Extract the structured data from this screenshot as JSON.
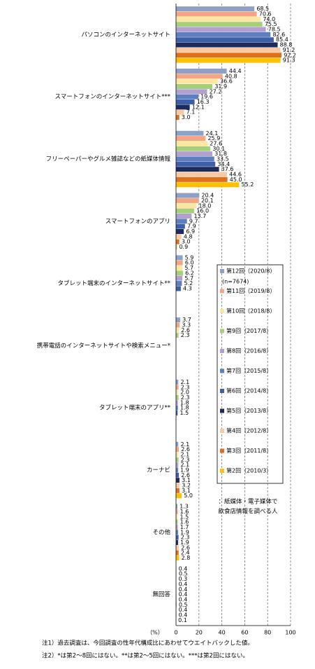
{
  "chart_data": {
    "type": "bar",
    "orientation": "horizontal",
    "categories": [
      "パソコンのインターネットサイト",
      "スマートフォンのインターネットサイト***",
      "フリーペーパーやグルメ雑誌などの紙媒体情報",
      "スマートフォンのアプリ",
      "タブレット端末のインターネットサイト**",
      "携帯電話のインターネットサイトや検索メニュー*",
      "タブレット端末のアプリ**",
      "カーナビ",
      "その他",
      "無回答"
    ],
    "series": [
      {
        "name": "第12回（2020/8）",
        "color": "#8fa0c8",
        "values": [
          68.5,
          44.4,
          24.1,
          20.4,
          5.9,
          3.7,
          2.1,
          2.1,
          1.3,
          0.4
        ],
        "value_labels": [
          "68.5",
          "44.4",
          "24.1",
          "20.4",
          "5.9",
          "3.7",
          "2.1",
          "2.1",
          "1.3",
          "0.4"
        ]
      },
      {
        "name": "第11回（2019/8）",
        "color": "#f4a582",
        "values": [
          70.6,
          40.8,
          25.9,
          20.1,
          6,
          3.3,
          2.3,
          2.6,
          1.6,
          0.5
        ],
        "value_labels": [
          "70.6",
          "40.8",
          "25.9",
          "20.1",
          "6.0",
          "3.3",
          "2.3",
          "2.6",
          "1.6",
          "0.5"
        ]
      },
      {
        "name": "第10回（2018/8）",
        "color": "#fde7a0",
        "values": [
          74,
          36.6,
          27.6,
          18,
          5.7,
          2.6,
          2,
          2.1,
          1.5,
          0.3
        ],
        "value_labels": [
          "74.0",
          "36.6",
          "27.6",
          "18.0",
          "5.7",
          "2.6",
          "2.0",
          "2.1",
          "1.5",
          "0.3"
        ]
      },
      {
        "name": "第9回（2017/8）",
        "color": "#a5cf7a",
        "values": [
          75.5,
          31.9,
          30.1,
          16,
          6.2,
          2.3,
          2.3,
          2.3,
          1.6,
          0.4
        ],
        "value_labels": [
          "75.5",
          "31.9",
          "30.1",
          "16.0",
          "6.2",
          "2.3",
          "2.3",
          "2.3",
          "1.6",
          "0.4"
        ]
      },
      {
        "name": "第8回（2016/8）",
        "color": "#b39fd0",
        "values": [
          78.5,
          27.2,
          31.8,
          13.7,
          5.7,
          null,
          1.8,
          2.1,
          1.7,
          0.4
        ],
        "value_labels": [
          "78.5",
          "27.2",
          "31.8",
          "13.7",
          "5.7",
          null,
          "1.8",
          "2.1",
          "1.7",
          "0.4"
        ]
      },
      {
        "name": "第7回（2015/8）",
        "color": "#5b7fbf",
        "values": [
          82.6,
          19.6,
          33.5,
          9.7,
          5.2,
          null,
          1.8,
          1.9,
          1.9,
          0.4
        ],
        "value_labels": [
          "82.6",
          "19.6",
          "33.5",
          "9.7",
          "5.2",
          null,
          "1.8",
          "1.9",
          "1.9",
          "0.4"
        ]
      },
      {
        "name": "第6回（2014/8）",
        "color": "#3d5ea8",
        "values": [
          85.4,
          16.3,
          34.4,
          7.9,
          4.3,
          null,
          1.5,
          2.6,
          2.3,
          0.4
        ],
        "value_labels": [
          "85.4",
          "16.3",
          "34.4",
          "7.9",
          "4.3",
          null,
          "1.5",
          "2.6",
          "2.3",
          "0.4"
        ]
      },
      {
        "name": "第5回（2013/8）",
        "color": "#1c2a5c",
        "values": [
          88.8,
          12.1,
          37.6,
          6.9,
          null,
          null,
          null,
          3.1,
          1.9,
          0.5
        ],
        "value_labels": [
          "88.8",
          "12.1",
          "37.6",
          "6.9",
          null,
          null,
          null,
          "3.1",
          "1.9",
          "0.5"
        ]
      },
      {
        "name": "第4回（2012/8）",
        "color": "#f8c9a2",
        "values": [
          91.2,
          7.1,
          44.6,
          4.8,
          null,
          null,
          null,
          3.2,
          2.6,
          0.4
        ],
        "value_labels": [
          "91.2",
          "7.1",
          "44.6",
          "4.8",
          null,
          null,
          null,
          "3.2",
          "2.6",
          "0.4"
        ]
      },
      {
        "name": "第3回（2011/8）",
        "color": "#e06f1c",
        "values": [
          92.2,
          3,
          45,
          3,
          null,
          null,
          null,
          3.1,
          2.4,
          0.4
        ],
        "value_labels": [
          "92.2",
          "3.0",
          "45.0",
          "3.0",
          null,
          null,
          null,
          "3.1",
          "2.4",
          "0.4"
        ]
      },
      {
        "name": "第2回（2010/3）",
        "color": "#ffc000",
        "values": [
          91.3,
          null,
          55.2,
          0.9,
          null,
          null,
          null,
          5,
          2.8,
          0.1
        ],
        "value_labels": [
          "91.3",
          null,
          "55.2",
          "0.9",
          null,
          null,
          null,
          "5.0",
          "2.8",
          "0.1"
        ]
      }
    ],
    "xlim": [
      0,
      100
    ],
    "xticks": [
      0,
      20,
      40,
      60,
      80,
      100
    ],
    "grid": true,
    "x_label": "（%）",
    "legend_note": "(n=7674)",
    "annotations": [
      "：紙媒体・電子媒体で",
      "飲食店情報を調べる人"
    ],
    "notes": [
      "注1）過去調査は、今回調査の性年代構成比にあわせてウエイトバックした値。",
      "注2）*は第2～8回にはない。**は第2～5回にはない。***は第2回にはない。"
    ]
  }
}
